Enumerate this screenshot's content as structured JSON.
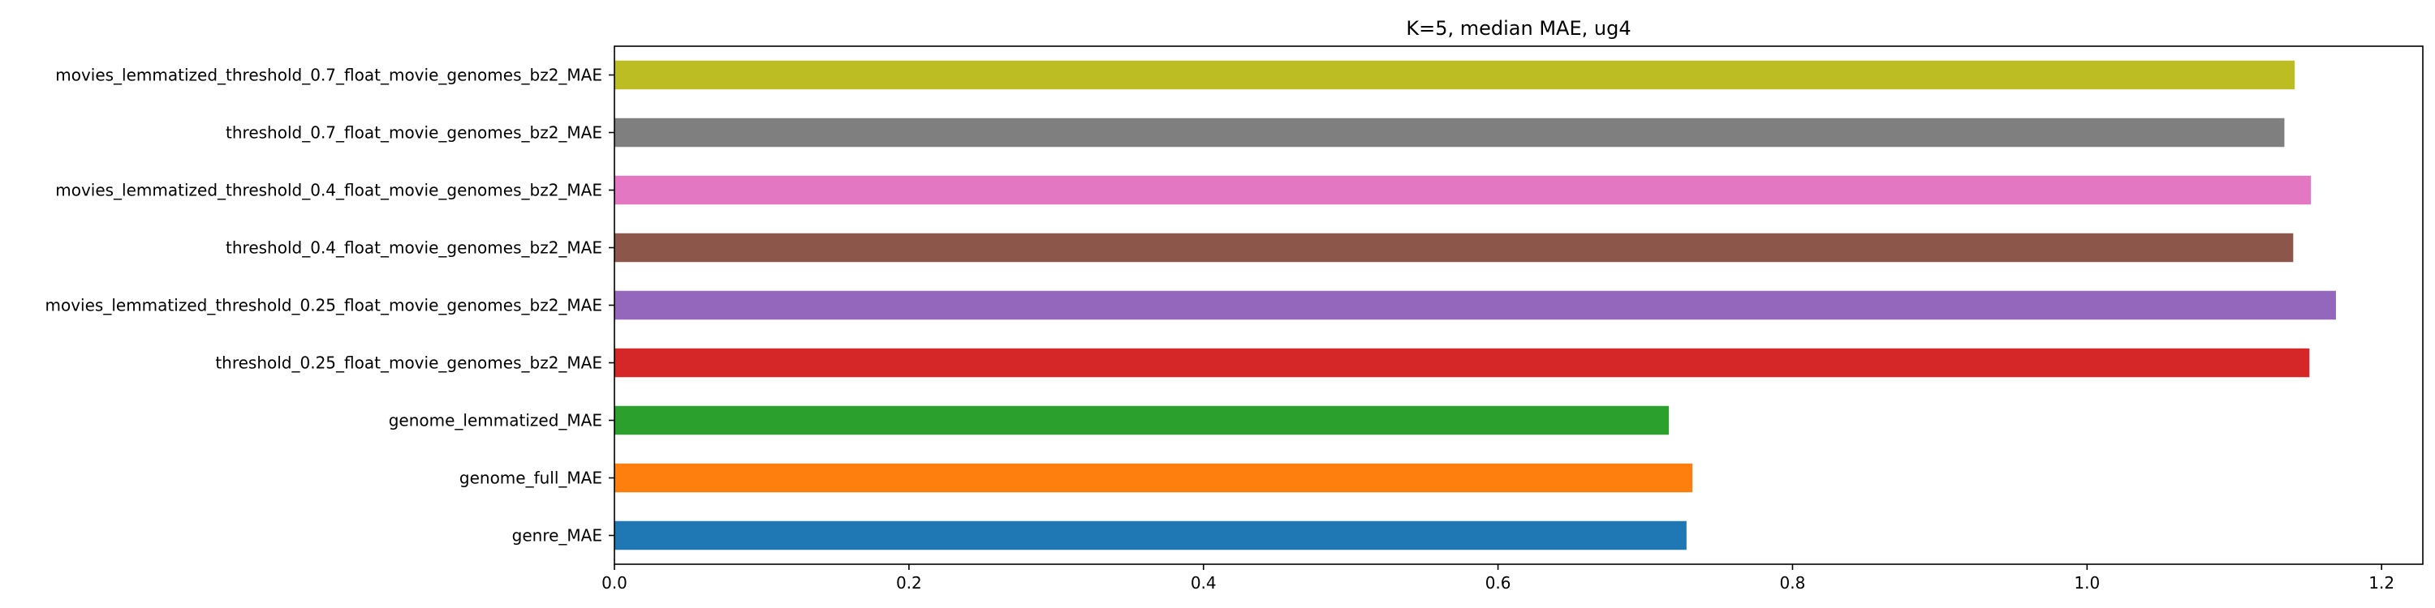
{
  "chart_data": {
    "type": "bar",
    "orientation": "horizontal",
    "title": "K=5, median MAE, ug4",
    "xlabel": "",
    "ylabel": "",
    "xlim": [
      0,
      1.228
    ],
    "xticks": [
      "0.0",
      "0.2",
      "0.4",
      "0.6",
      "0.8",
      "1.0",
      "1.2"
    ],
    "grid": false,
    "legend": "none",
    "categories": [
      "genre_MAE",
      "genome_full_MAE",
      "genome_lemmatized_MAE",
      "threshold_0.25_float_movie_genomes_bz2_MAE",
      "movies_lemmatized_threshold_0.25_float_movie_genomes_bz2_MAE",
      "threshold_0.4_float_movie_genomes_bz2_MAE",
      "movies_lemmatized_threshold_0.4_float_movie_genomes_bz2_MAE",
      "threshold_0.7_float_movie_genomes_bz2_MAE",
      "movies_lemmatized_threshold_0.7_float_movie_genomes_bz2_MAE"
    ],
    "values": [
      0.728,
      0.732,
      0.716,
      1.151,
      1.169,
      1.14,
      1.152,
      1.134,
      1.141
    ],
    "colors": [
      "#1f77b4",
      "#ff7f0e",
      "#2ca02c",
      "#d62728",
      "#9467bd",
      "#8c564b",
      "#e377c2",
      "#7f7f7f",
      "#bcbd22"
    ]
  }
}
